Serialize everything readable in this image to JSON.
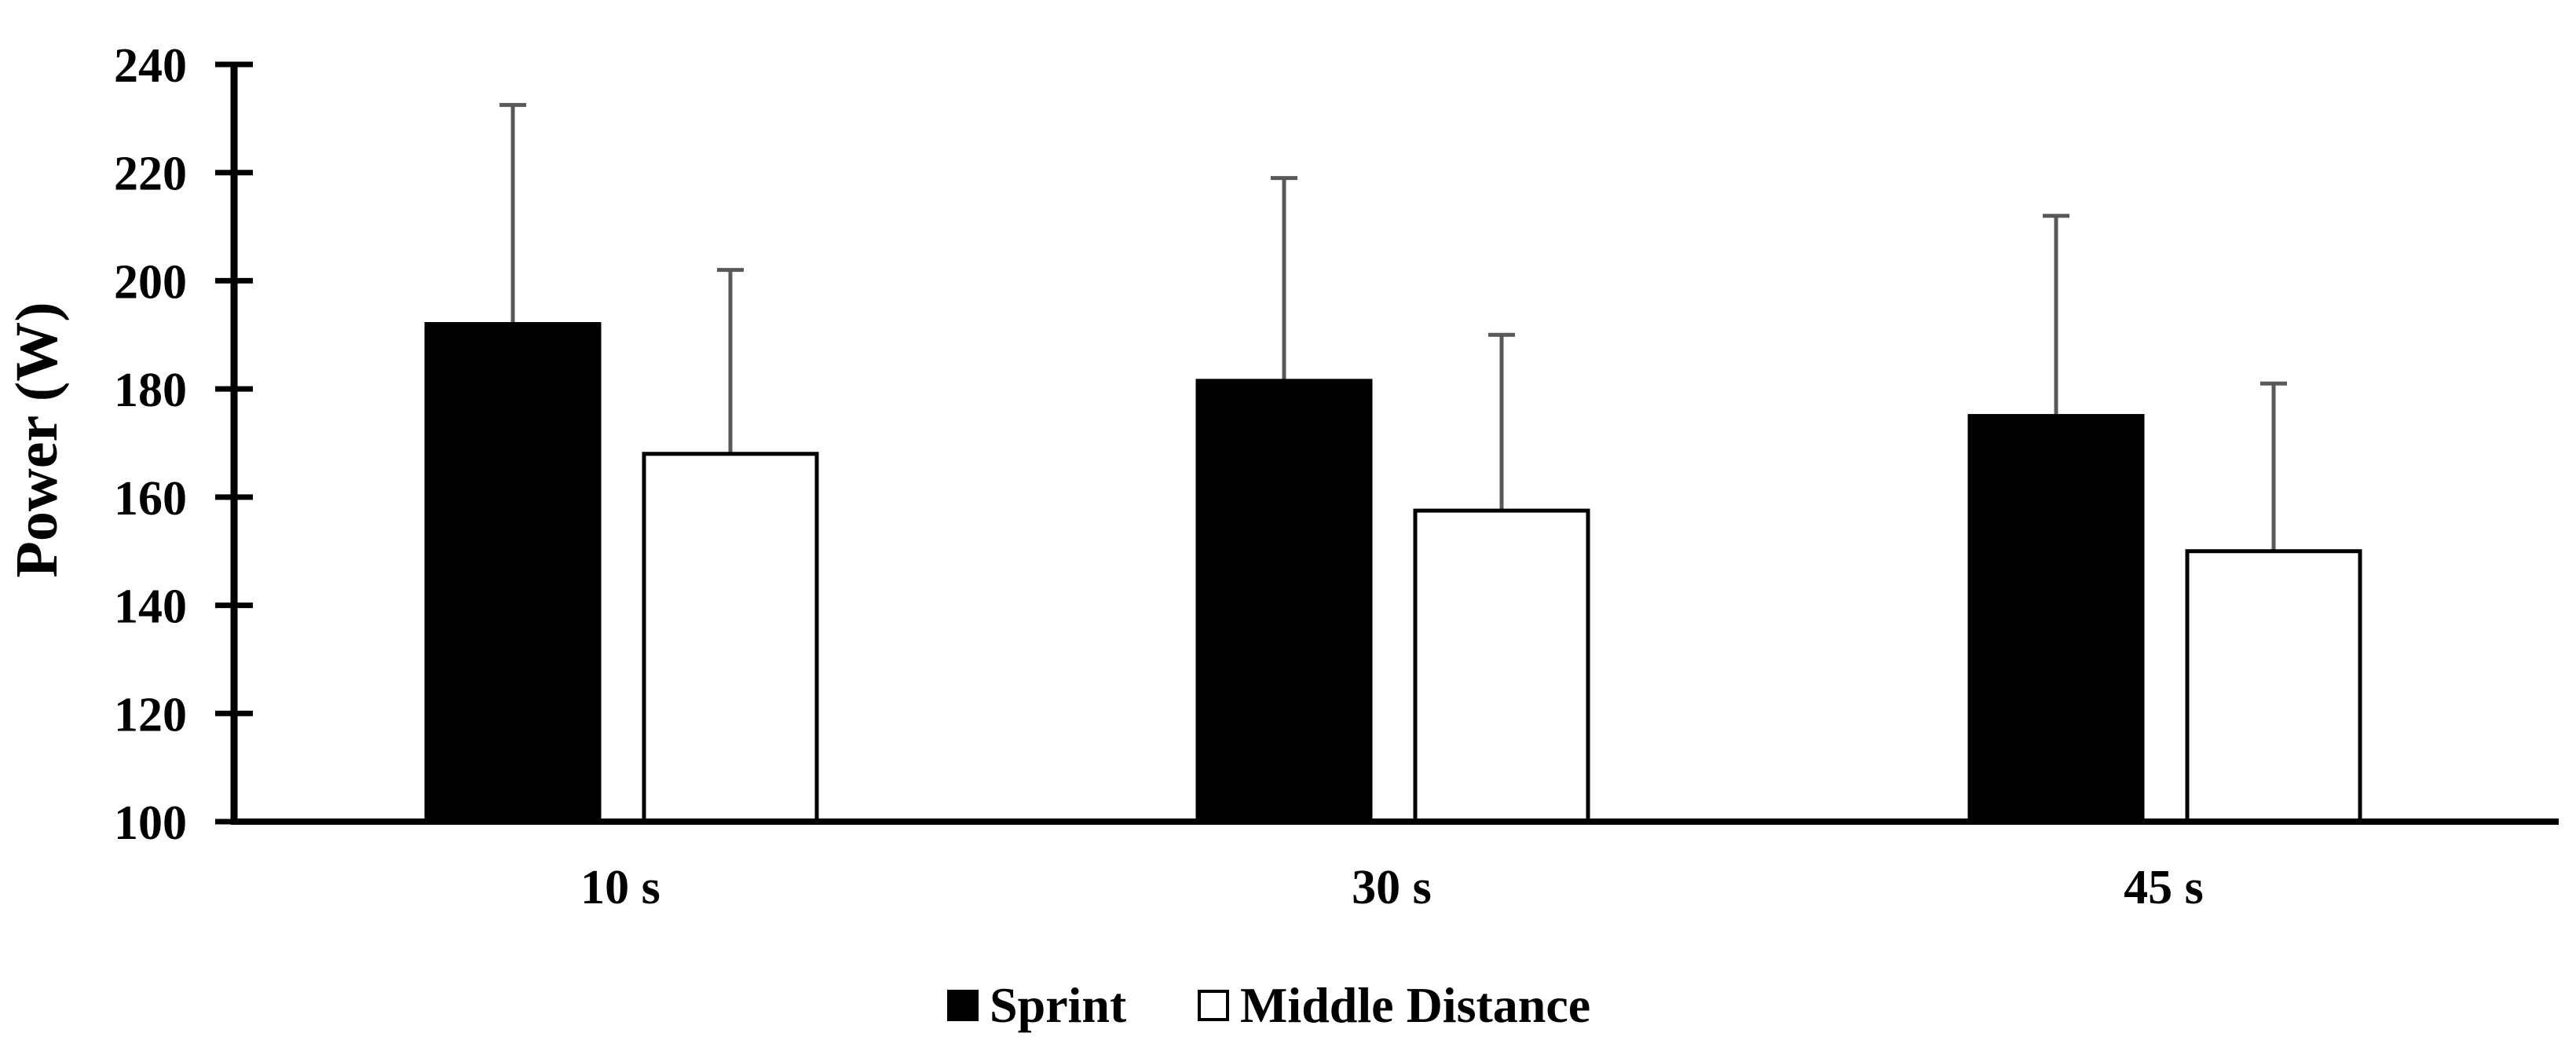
{
  "chart_data": {
    "type": "bar",
    "title": "",
    "xlabel": "",
    "ylabel": "Power  (W)",
    "ylim": [
      100,
      240
    ],
    "yticks": [
      100,
      120,
      140,
      160,
      180,
      200,
      220,
      240
    ],
    "categories": [
      "10 s",
      "30 s",
      "45 s"
    ],
    "grid": false,
    "legend_position": "bottom",
    "series": [
      {
        "name": "Sprint",
        "values": [
          192,
          181.5,
          175
        ],
        "error": [
          40.5,
          37.5,
          37
        ],
        "fill": "#000000"
      },
      {
        "name": "Middle Distance",
        "values": [
          168,
          157.5,
          150
        ],
        "error": [
          34,
          32.5,
          31
        ],
        "fill": "#ffffff"
      }
    ]
  }
}
